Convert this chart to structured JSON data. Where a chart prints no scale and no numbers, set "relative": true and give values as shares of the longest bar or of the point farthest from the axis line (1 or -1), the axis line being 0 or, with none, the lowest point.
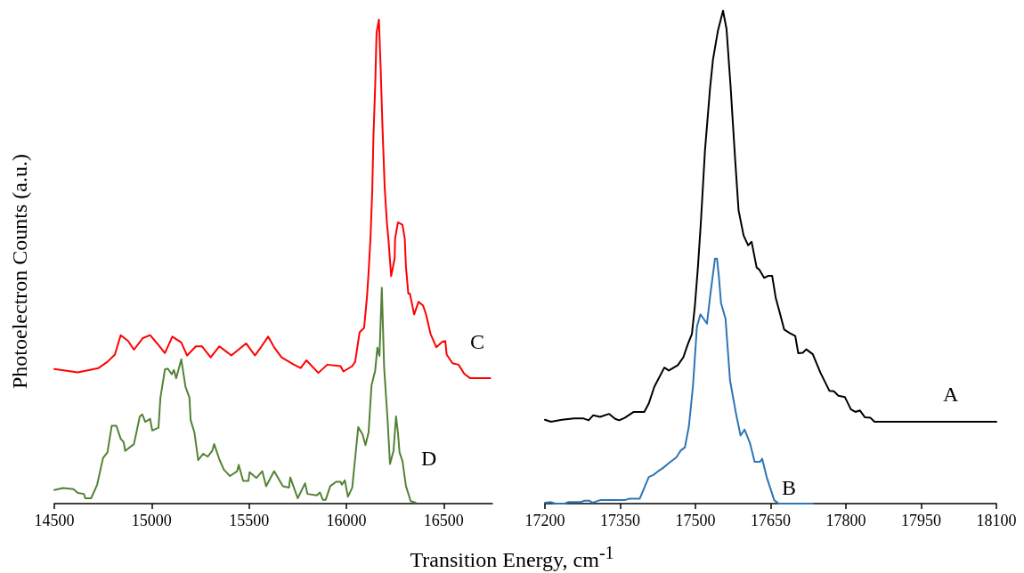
{
  "chart_data": [
    {
      "type": "line",
      "relative": true,
      "ylabel": "Photoelectron Counts (a.u.)",
      "xlim": [
        14500,
        16750
      ],
      "xticks": [
        14500,
        15000,
        15500,
        16000,
        16500
      ],
      "marker": "none",
      "line_style": "solid",
      "grid": false,
      "annotations": [
        "C",
        "D"
      ],
      "series": [
        {
          "color": "#ff0000",
          "x": [
            14500,
            14621,
            14727,
            14773,
            14811,
            14841,
            14879,
            14909,
            14955,
            14992,
            15030,
            15068,
            15106,
            15152,
            15182,
            15227,
            15258,
            15303,
            15348,
            15409,
            15485,
            15530,
            15561,
            15598,
            15629,
            15667,
            15727,
            15765,
            15795,
            15856,
            15902,
            15970,
            15985,
            16030,
            16045,
            16068,
            16091,
            16106,
            16114,
            16124,
            16133,
            16139,
            16148,
            16155,
            16167,
            16176,
            16185,
            16197,
            16208,
            16217,
            16230,
            16248,
            16250,
            16265,
            16288,
            16300,
            16306,
            16318,
            16326,
            16348,
            16371,
            16394,
            16409,
            16432,
            16462,
            16492,
            16508,
            16515,
            16545,
            16576,
            16606,
            16636,
            16739
          ],
          "values": [
            0.278,
            0.271,
            0.28,
            0.293,
            0.308,
            0.348,
            0.336,
            0.318,
            0.342,
            0.348,
            0.33,
            0.311,
            0.345,
            0.333,
            0.306,
            0.325,
            0.325,
            0.302,
            0.325,
            0.306,
            0.331,
            0.306,
            0.323,
            0.345,
            0.323,
            0.302,
            0.288,
            0.28,
            0.296,
            0.27,
            0.287,
            0.284,
            0.273,
            0.284,
            0.293,
            0.354,
            0.363,
            0.428,
            0.477,
            0.55,
            0.648,
            0.758,
            0.863,
            0.973,
            1,
            0.9,
            0.783,
            0.651,
            0.581,
            0.541,
            0.47,
            0.507,
            0.547,
            0.581,
            0.576,
            0.547,
            0.489,
            0.434,
            0.434,
            0.391,
            0.417,
            0.409,
            0.391,
            0.351,
            0.323,
            0.334,
            0.336,
            0.308,
            0.29,
            0.287,
            0.268,
            0.259,
            0.259
          ]
        },
        {
          "color": "#548235",
          "x": [
            14500,
            14545,
            14598,
            14621,
            14652,
            14659,
            14689,
            14720,
            14750,
            14773,
            14795,
            14818,
            14841,
            14856,
            14864,
            14909,
            14939,
            14952,
            14967,
            14992,
            15003,
            15035,
            15045,
            15068,
            15083,
            15103,
            15114,
            15126,
            15152,
            15174,
            15194,
            15200,
            15220,
            15239,
            15265,
            15288,
            15311,
            15321,
            15348,
            15371,
            15402,
            15439,
            15447,
            15470,
            15497,
            15503,
            15538,
            15568,
            15588,
            15629,
            15674,
            15705,
            15712,
            15750,
            15788,
            15800,
            15848,
            15864,
            15879,
            15894,
            15917,
            15947,
            15970,
            15977,
            15992,
            16008,
            16030,
            16061,
            16083,
            16098,
            16114,
            16129,
            16148,
            16159,
            16170,
            16182,
            16194,
            16212,
            16224,
            16242,
            16255,
            16265,
            16273,
            16288,
            16306,
            16321,
            16330,
            16356
          ],
          "values": [
            0.028,
            0.032,
            0.03,
            0.022,
            0.02,
            0.011,
            0.011,
            0.039,
            0.094,
            0.106,
            0.161,
            0.161,
            0.134,
            0.127,
            0.109,
            0.123,
            0.18,
            0.184,
            0.169,
            0.175,
            0.151,
            0.157,
            0.219,
            0.277,
            0.279,
            0.267,
            0.276,
            0.259,
            0.298,
            0.241,
            0.219,
            0.173,
            0.146,
            0.09,
            0.103,
            0.097,
            0.109,
            0.123,
            0.091,
            0.07,
            0.057,
            0.067,
            0.08,
            0.047,
            0.047,
            0.065,
            0.053,
            0.067,
            0.036,
            0.067,
            0.036,
            0.033,
            0.054,
            0.011,
            0.042,
            0.02,
            0.017,
            0.023,
            0.008,
            0.008,
            0.036,
            0.045,
            0.045,
            0.039,
            0.048,
            0.014,
            0.033,
            0.158,
            0.143,
            0.121,
            0.147,
            0.244,
            0.275,
            0.322,
            0.305,
            0.446,
            0.281,
            0.17,
            0.082,
            0.109,
            0.18,
            0.146,
            0.106,
            0.088,
            0.036,
            0.017,
            0.005,
            0.002
          ]
        }
      ]
    },
    {
      "type": "line",
      "relative": true,
      "xlabel": "Transition Energy, cm$^{-1}$",
      "xlim": [
        17200,
        18100
      ],
      "xticks": [
        17200,
        17350,
        17500,
        17650,
        17800,
        17950,
        18100
      ],
      "marker": "none",
      "line_style": "solid",
      "grid": false,
      "annotations": [
        "A",
        "B"
      ],
      "series": [
        {
          "color": "#000000",
          "x": [
            17200,
            17212,
            17234,
            17258,
            17276,
            17287,
            17296,
            17310,
            17328,
            17340,
            17348,
            17359,
            17377,
            17398,
            17407,
            17418,
            17438,
            17447,
            17465,
            17476,
            17484,
            17493,
            17499,
            17505,
            17511,
            17519,
            17529,
            17535,
            17545,
            17555,
            17562,
            17570,
            17579,
            17586,
            17596,
            17605,
            17612,
            17622,
            17627,
            17637,
            17645,
            17653,
            17660,
            17669,
            17677,
            17688,
            17699,
            17705,
            17714,
            17721,
            17734,
            17749,
            17767,
            17776,
            17785,
            17798,
            17810,
            17819,
            17828,
            17838,
            17849,
            17857,
            18100
          ],
          "values": [
            0.17,
            0.166,
            0.17,
            0.173,
            0.173,
            0.169,
            0.179,
            0.176,
            0.182,
            0.172,
            0.169,
            0.174,
            0.186,
            0.186,
            0.203,
            0.237,
            0.276,
            0.27,
            0.281,
            0.297,
            0.321,
            0.344,
            0.402,
            0.48,
            0.573,
            0.716,
            0.841,
            0.901,
            0.96,
            1,
            0.963,
            0.848,
            0.701,
            0.595,
            0.544,
            0.524,
            0.531,
            0.479,
            0.475,
            0.458,
            0.462,
            0.462,
            0.418,
            0.384,
            0.353,
            0.346,
            0.34,
            0.305,
            0.306,
            0.313,
            0.303,
            0.266,
            0.229,
            0.228,
            0.219,
            0.216,
            0.191,
            0.186,
            0.189,
            0.175,
            0.174,
            0.166,
            0.166
          ]
        },
        {
          "color": "#2e75b6",
          "x": [
            17200,
            17212,
            17221,
            17240,
            17246,
            17270,
            17279,
            17288,
            17295,
            17310,
            17359,
            17368,
            17389,
            17398,
            17407,
            17416,
            17426,
            17435,
            17447,
            17462,
            17471,
            17479,
            17487,
            17495,
            17503,
            17510,
            17523,
            17529,
            17534,
            17539,
            17543,
            17547,
            17551,
            17560,
            17569,
            17581,
            17590,
            17598,
            17609,
            17618,
            17629,
            17633,
            17642,
            17651,
            17657,
            17666,
            17734
          ],
          "values": [
            0.002,
            0.003,
            0,
            0,
            0.003,
            0.003,
            0.006,
            0.006,
            0.002,
            0.007,
            0.007,
            0.01,
            0.01,
            0.032,
            0.054,
            0.058,
            0.066,
            0.072,
            0.082,
            0.094,
            0.108,
            0.114,
            0.157,
            0.237,
            0.359,
            0.384,
            0.365,
            0.418,
            0.458,
            0.497,
            0.497,
            0.458,
            0.407,
            0.375,
            0.25,
            0.182,
            0.138,
            0.15,
            0.122,
            0.085,
            0.085,
            0.091,
            0.054,
            0.026,
            0.007,
            0,
            0
          ]
        }
      ]
    }
  ]
}
